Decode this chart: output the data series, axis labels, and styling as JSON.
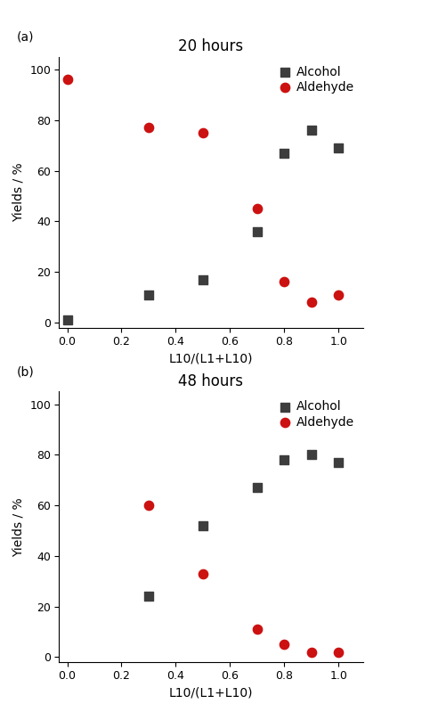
{
  "panel_a": {
    "title": "20 hours",
    "alcohol_x": [
      0.0,
      0.3,
      0.5,
      0.7,
      0.8,
      0.9,
      1.0
    ],
    "alcohol_y": [
      1,
      11,
      17,
      36,
      67,
      76,
      69
    ],
    "aldehyde_x": [
      0.0,
      0.3,
      0.5,
      0.7,
      0.8,
      0.9,
      1.0
    ],
    "aldehyde_y": [
      96,
      77,
      75,
      45,
      16,
      8,
      11
    ]
  },
  "panel_b": {
    "title": "48 hours",
    "alcohol_x": [
      0.3,
      0.5,
      0.7,
      0.8,
      0.9,
      1.0
    ],
    "alcohol_y": [
      24,
      52,
      67,
      78,
      80,
      77
    ],
    "aldehyde_x": [
      0.3,
      0.5,
      0.7,
      0.8,
      0.9,
      1.0
    ],
    "aldehyde_y": [
      60,
      33,
      11,
      5,
      2,
      2
    ]
  },
  "xlabel": "L10/(L1+L10)",
  "ylabel": "Yields / %",
  "alcohol_color": "#3d3d3d",
  "aldehyde_color": "#cc1111",
  "alcohol_label": "Alcohol",
  "aldehyde_label": "Aldehyde",
  "marker_alcohol": "s",
  "marker_aldehyde": "o",
  "marker_size": 55,
  "xlim": [
    -0.03,
    1.09
  ],
  "ylim": [
    -2,
    105
  ],
  "xticks": [
    0.0,
    0.2,
    0.4,
    0.6,
    0.8,
    1.0
  ],
  "yticks": [
    0,
    20,
    40,
    60,
    80,
    100
  ],
  "label_a": "(a)",
  "label_b": "(b)",
  "title_fontsize": 12,
  "axis_label_fontsize": 10,
  "tick_fontsize": 9,
  "legend_fontsize": 10,
  "background_color": "#ffffff"
}
